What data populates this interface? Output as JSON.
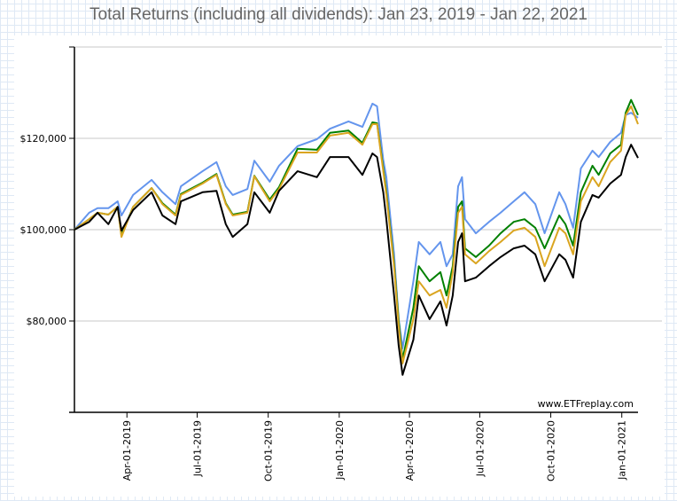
{
  "chart_data": {
    "type": "line",
    "title": "Total Returns (including all dividends): Jan 23, 2019 - Jan 22, 2021",
    "watermark": "www.ETFreplay.com",
    "xlabel": "",
    "ylabel": "",
    "ylim": [
      60000,
      140000
    ],
    "xlim": [
      "2019-01-23",
      "2021-01-22"
    ],
    "grid": true,
    "y_ticks": [
      {
        "value": 80000,
        "label": "$80,000"
      },
      {
        "value": 100000,
        "label": "$100,000"
      },
      {
        "value": 120000,
        "label": "$120,000"
      }
    ],
    "x_ticks": [
      {
        "value": "2019-04-01",
        "label": "Apr-01-2019"
      },
      {
        "value": "2019-07-01",
        "label": "Jul-01-2019"
      },
      {
        "value": "2019-10-01",
        "label": "Oct-01-2019"
      },
      {
        "value": "2020-01-01",
        "label": "Jan-01-2020"
      },
      {
        "value": "2020-04-01",
        "label": "Apr-01-2020"
      },
      {
        "value": "2020-07-01",
        "label": "Jul-01-2020"
      },
      {
        "value": "2020-10-01",
        "label": "Oct-01-2020"
      },
      {
        "value": "2021-01-01",
        "label": "Jan-01-2021"
      }
    ],
    "x": [
      "2019-01-23",
      "2019-02-11",
      "2019-02-22",
      "2019-03-08",
      "2019-03-20",
      "2019-03-25",
      "2019-04-09",
      "2019-05-03",
      "2019-05-17",
      "2019-06-03",
      "2019-06-10",
      "2019-07-08",
      "2019-07-26",
      "2019-08-07",
      "2019-08-16",
      "2019-09-04",
      "2019-09-13",
      "2019-10-03",
      "2019-10-15",
      "2019-11-08",
      "2019-12-03",
      "2019-12-20",
      "2020-01-13",
      "2020-01-31",
      "2020-02-13",
      "2020-02-19",
      "2020-02-27",
      "2020-03-02",
      "2020-03-12",
      "2020-03-18",
      "2020-03-23",
      "2020-04-06",
      "2020-04-13",
      "2020-04-27",
      "2020-05-11",
      "2020-05-19",
      "2020-05-27",
      "2020-06-03",
      "2020-06-08",
      "2020-06-12",
      "2020-06-26",
      "2020-07-13",
      "2020-07-28",
      "2020-08-14",
      "2020-08-28",
      "2020-09-11",
      "2020-09-23",
      "2020-10-12",
      "2020-10-20",
      "2020-10-30",
      "2020-11-09",
      "2020-11-24",
      "2020-12-02",
      "2020-12-17",
      "2020-12-31",
      "2021-01-06",
      "2021-01-13",
      "2021-01-22"
    ],
    "series": [
      {
        "color": "#6495ed",
        "values": [
          100000,
          103700,
          104700,
          104700,
          106200,
          103100,
          107600,
          110900,
          108200,
          105600,
          109500,
          112800,
          114800,
          109500,
          107600,
          108900,
          115100,
          110500,
          114000,
          118300,
          119800,
          122100,
          123700,
          122500,
          127600,
          127000,
          115300,
          111500,
          94600,
          80400,
          74000,
          88700,
          97300,
          94600,
          97300,
          92000,
          94600,
          109500,
          111500,
          102300,
          99200,
          101700,
          103700,
          106200,
          108200,
          105600,
          99200,
          108200,
          105600,
          100400,
          113400,
          117300,
          115900,
          119200,
          121200,
          125100,
          125600,
          124500
        ]
      },
      {
        "color": "#008000",
        "values": [
          100000,
          102300,
          103700,
          103300,
          105000,
          98800,
          105000,
          109100,
          105800,
          103300,
          107800,
          110300,
          112200,
          105800,
          103300,
          103900,
          111800,
          106600,
          109300,
          117700,
          117500,
          121200,
          121700,
          119000,
          123500,
          123300,
          113400,
          108200,
          92600,
          80000,
          71600,
          82900,
          92000,
          88700,
          90700,
          85600,
          92000,
          105000,
          106200,
          95900,
          94000,
          96500,
          99200,
          101700,
          102300,
          100400,
          95900,
          103100,
          101200,
          96500,
          108200,
          114000,
          112000,
          116700,
          118600,
          125600,
          128400,
          125100
        ]
      },
      {
        "color": "#daa520",
        "values": [
          100000,
          102300,
          103700,
          103300,
          105000,
          98400,
          105000,
          109100,
          105600,
          103100,
          107600,
          110100,
          112000,
          105600,
          103100,
          103700,
          111700,
          106200,
          108900,
          116900,
          116900,
          120600,
          121200,
          118600,
          123100,
          123100,
          112800,
          107600,
          92000,
          79000,
          70700,
          80400,
          88700,
          85600,
          86800,
          82900,
          90700,
          103700,
          105000,
          94600,
          92600,
          95300,
          97300,
          99800,
          100400,
          98400,
          92000,
          100400,
          99200,
          94600,
          106200,
          111500,
          109500,
          114800,
          117300,
          125100,
          127000,
          123100
        ]
      },
      {
        "color": "#000000",
        "values": [
          100000,
          101700,
          103700,
          101200,
          105000,
          99800,
          104300,
          108200,
          103100,
          101200,
          106200,
          108200,
          108500,
          101200,
          98400,
          101200,
          108200,
          103700,
          108500,
          112800,
          111500,
          115900,
          115900,
          112000,
          116700,
          115900,
          108200,
          102300,
          85600,
          74600,
          68200,
          75900,
          85600,
          80400,
          84300,
          79000,
          85600,
          97300,
          99200,
          88700,
          89500,
          92000,
          94000,
          95900,
          96500,
          94600,
          88700,
          94600,
          93400,
          89500,
          101700,
          107600,
          107000,
          110100,
          112000,
          115900,
          118600,
          115700
        ]
      }
    ]
  }
}
